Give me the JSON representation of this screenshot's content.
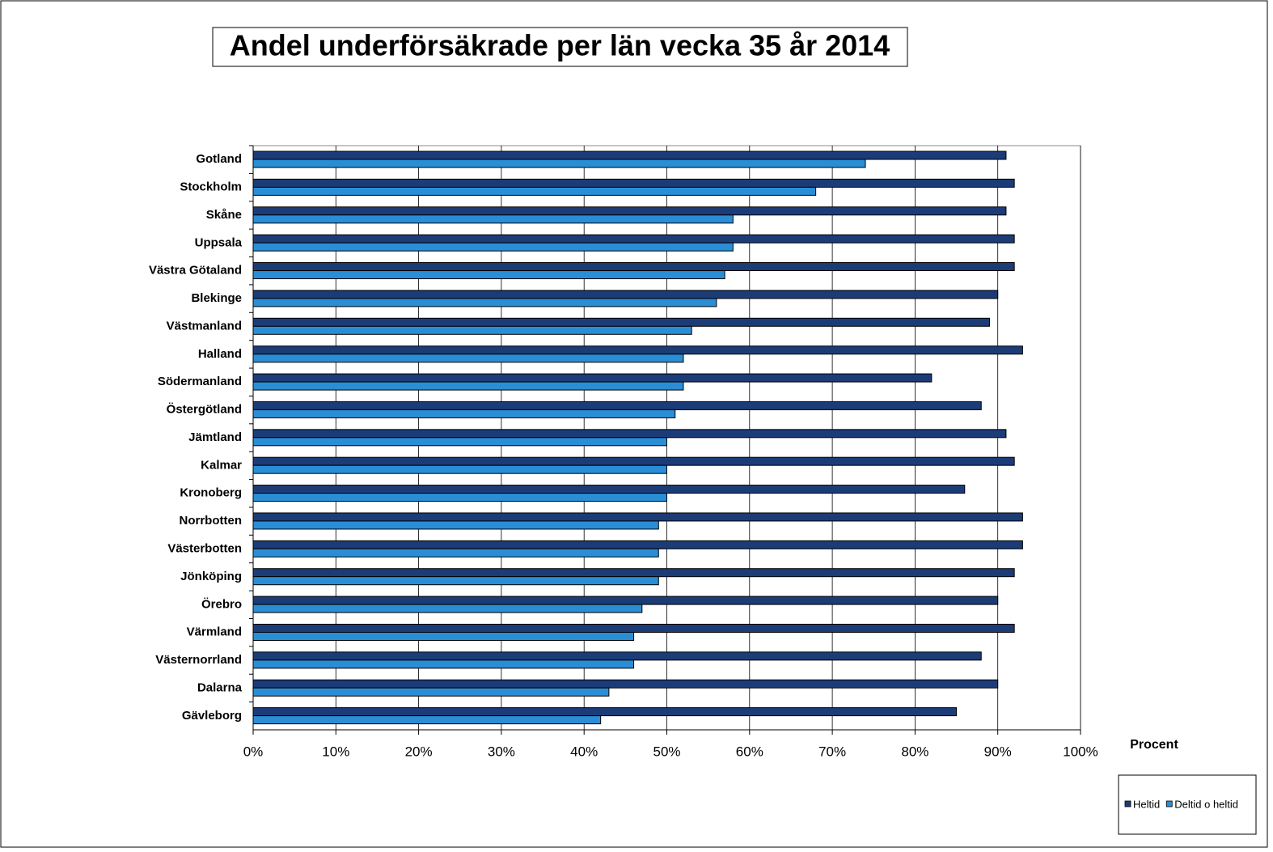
{
  "chart_data": {
    "type": "hbar",
    "title": "Andel underförsäkrade per län vecka 35 år 2014",
    "x_label": "Procent",
    "categories": [
      "Gotland",
      "Stockholm",
      "Skåne",
      "Uppsala",
      "Västra Götaland",
      "Blekinge",
      "Västmanland",
      "Halland",
      "Södermanland",
      "Östergötland",
      "Jämtland",
      "Kalmar",
      "Kronoberg",
      "Norrbotten",
      "Västerbotten",
      "Jönköping",
      "Örebro",
      "Värmland",
      "Västernorrland",
      "Dalarna",
      "Gävleborg"
    ],
    "series": [
      {
        "name": "Heltid",
        "color": "#1c3c78",
        "values": [
          91,
          92,
          91,
          92,
          92,
          90,
          89,
          93,
          82,
          88,
          91,
          92,
          86,
          93,
          93,
          92,
          90,
          92,
          88,
          90,
          85
        ]
      },
      {
        "name": "Deltid o heltid",
        "color": "#2a8ed6",
        "values": [
          74,
          68,
          58,
          58,
          57,
          56,
          53,
          52,
          52,
          51,
          50,
          50,
          50,
          49,
          49,
          49,
          47,
          46,
          46,
          43,
          42
        ]
      }
    ],
    "xlim": [
      0,
      100
    ],
    "xticks": [
      {
        "value": 0,
        "label": "0%"
      },
      {
        "value": 10,
        "label": "10%"
      },
      {
        "value": 20,
        "label": "20%"
      },
      {
        "value": 30,
        "label": "30%"
      },
      {
        "value": 40,
        "label": "40%"
      },
      {
        "value": 50,
        "label": "50%"
      },
      {
        "value": 60,
        "label": "60%"
      },
      {
        "value": 70,
        "label": "70%"
      },
      {
        "value": 80,
        "label": "80%"
      },
      {
        "value": 90,
        "label": "90%"
      },
      {
        "value": 100,
        "label": "100%"
      }
    ],
    "grid": true
  }
}
